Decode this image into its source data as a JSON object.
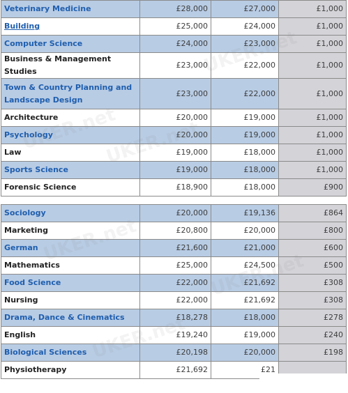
{
  "table1": {
    "rows": [
      {
        "subject": "Veterinary Medicine",
        "col1": "£28,000",
        "col2": "£27,000",
        "diff": "£1,000",
        "style": "blue",
        "link": true
      },
      {
        "subject": "Building",
        "col1": "£25,000",
        "col2": "£24,000",
        "diff": "£1,000",
        "style": "white",
        "link": true,
        "underline": true
      },
      {
        "subject": "Computer Science",
        "col1": "£24,000",
        "col2": "£23,000",
        "diff": "£1,000",
        "style": "blue",
        "link": true
      },
      {
        "subject": "Business & Management Studies",
        "col1": "£23,000",
        "col2": "£22,000",
        "diff": "£1,000",
        "style": "white",
        "link": false
      },
      {
        "subject": "Town & Country Planning and Landscape Design",
        "col1": "£23,000",
        "col2": "£22,000",
        "diff": "£1,000",
        "style": "blue",
        "link": true,
        "tall": true
      },
      {
        "subject": "Architecture",
        "col1": "£20,000",
        "col2": "£19,000",
        "diff": "£1,000",
        "style": "white",
        "link": false
      },
      {
        "subject": "Psychology",
        "col1": "£20,000",
        "col2": "£19,000",
        "diff": "£1,000",
        "style": "blue",
        "link": true
      },
      {
        "subject": "Law",
        "col1": "£19,000",
        "col2": "£18,000",
        "diff": "£1,000",
        "style": "white",
        "link": false
      },
      {
        "subject": "Sports Science",
        "col1": "£19,000",
        "col2": "£18,000",
        "diff": "£1,000",
        "style": "blue",
        "link": true
      },
      {
        "subject": "Forensic Science",
        "col1": "£18,900",
        "col2": "£18,000",
        "diff": "£900",
        "style": "white",
        "link": false
      }
    ]
  },
  "table2": {
    "rows": [
      {
        "subject": "Sociology",
        "col1": "£20,000",
        "col2": "£19,136",
        "diff": "£864",
        "style": "blue",
        "link": true
      },
      {
        "subject": "Marketing",
        "col1": "£20,800",
        "col2": "£20,000",
        "diff": "£800",
        "style": "white",
        "link": false
      },
      {
        "subject": "German",
        "col1": "£21,600",
        "col2": "£21,000",
        "diff": "£600",
        "style": "blue",
        "link": true
      },
      {
        "subject": "Mathematics",
        "col1": "£25,000",
        "col2": "£24,500",
        "diff": "£500",
        "style": "white",
        "link": false
      },
      {
        "subject": "Food Science",
        "col1": "£22,000",
        "col2": "£21,692",
        "diff": "£308",
        "style": "blue",
        "link": true
      },
      {
        "subject": "Nursing",
        "col1": "£22,000",
        "col2": "£21,692",
        "diff": "£308",
        "style": "white",
        "link": false
      },
      {
        "subject": "Drama, Dance & Cinematics",
        "col1": "£18,278",
        "col2": "£18,000",
        "diff": "£278",
        "style": "blue",
        "link": true
      },
      {
        "subject": "English",
        "col1": "£19,240",
        "col2": "£19,000",
        "diff": "£240",
        "style": "white",
        "link": false
      },
      {
        "subject": "Biological Sciences",
        "col1": "£20,198",
        "col2": "£20,000",
        "diff": "£198",
        "style": "blue",
        "link": true
      },
      {
        "subject": "Physiotherapy",
        "col1": "£21,692",
        "col2": "£21",
        "diff": "",
        "style": "white",
        "link": false
      }
    ]
  },
  "watermark": "UKER.net",
  "colors": {
    "row_blue": "#b8cce4",
    "diff_grey": "#d4d3d8",
    "link_blue": "#1f5eae",
    "border": "#8a8a8a"
  }
}
